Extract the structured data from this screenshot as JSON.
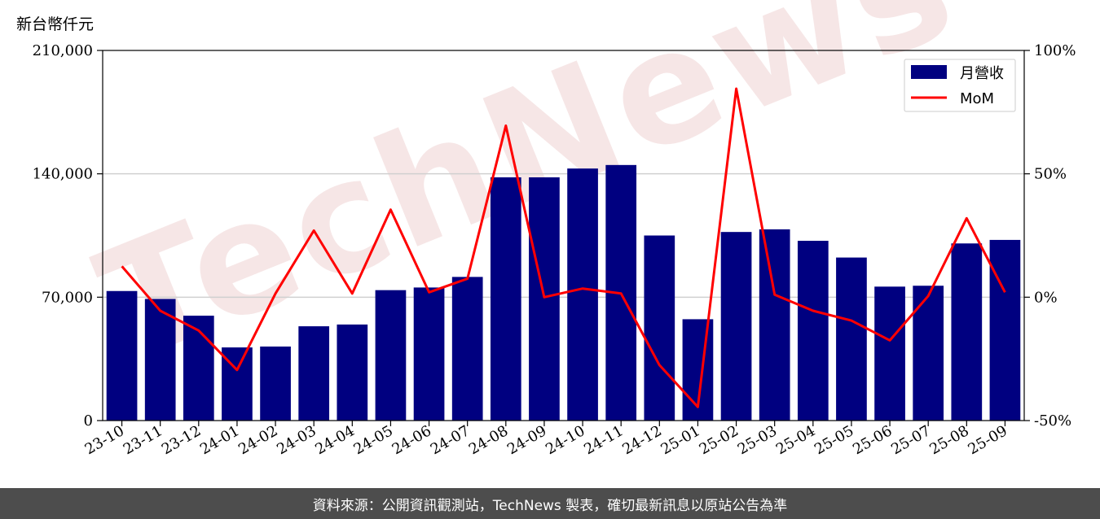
{
  "chart_data": {
    "type": "bar",
    "categories": [
      "23-10",
      "23-11",
      "23-12",
      "24-01",
      "24-02",
      "24-03",
      "24-04",
      "24-05",
      "24-06",
      "24-07",
      "24-08",
      "24-09",
      "24-10",
      "24-11",
      "24-12",
      "25-01",
      "25-02",
      "25-03",
      "25-04",
      "25-05",
      "25-06",
      "25-07",
      "25-08",
      "25-09"
    ],
    "series": [
      {
        "name": "月營收",
        "type": "bar",
        "axis": "left",
        "color": "#000080",
        "values": [
          73500,
          69000,
          59500,
          41500,
          42000,
          53500,
          54500,
          74000,
          75500,
          81500,
          138000,
          138000,
          143000,
          145000,
          105000,
          57500,
          107000,
          108500,
          102000,
          92500,
          76000,
          76500,
          100500,
          102500
        ]
      },
      {
        "name": "MoM",
        "type": "line",
        "axis": "right",
        "color": "#ff0000",
        "values": [
          12.5,
          -5.5,
          -13.5,
          -29.5,
          1.5,
          27,
          1.5,
          35.5,
          2,
          7.5,
          69.5,
          0,
          3.5,
          1.5,
          -27.5,
          -44.5,
          84.5,
          1,
          -5.5,
          -9.5,
          -17.5,
          0.5,
          32,
          2
        ]
      }
    ],
    "ylabel": "新台幣仟元",
    "ylim": [
      0,
      210000
    ],
    "y_ticks": [
      "0",
      "70,000",
      "140,000",
      "210,000"
    ],
    "y2lim": [
      -50,
      100
    ],
    "y2_ticks": [
      "-50%",
      "0%",
      "50%",
      "100%"
    ],
    "grid": "horizontal",
    "legend": "top-right"
  },
  "watermark": "TechNews",
  "footer_text": "資料來源：公開資訊觀測站，TechNews 製表，確切最新訊息以原站公告為準",
  "colors": {
    "bar": "#000080",
    "line": "#ff0000",
    "footer_bg": "#4d4d4d"
  }
}
